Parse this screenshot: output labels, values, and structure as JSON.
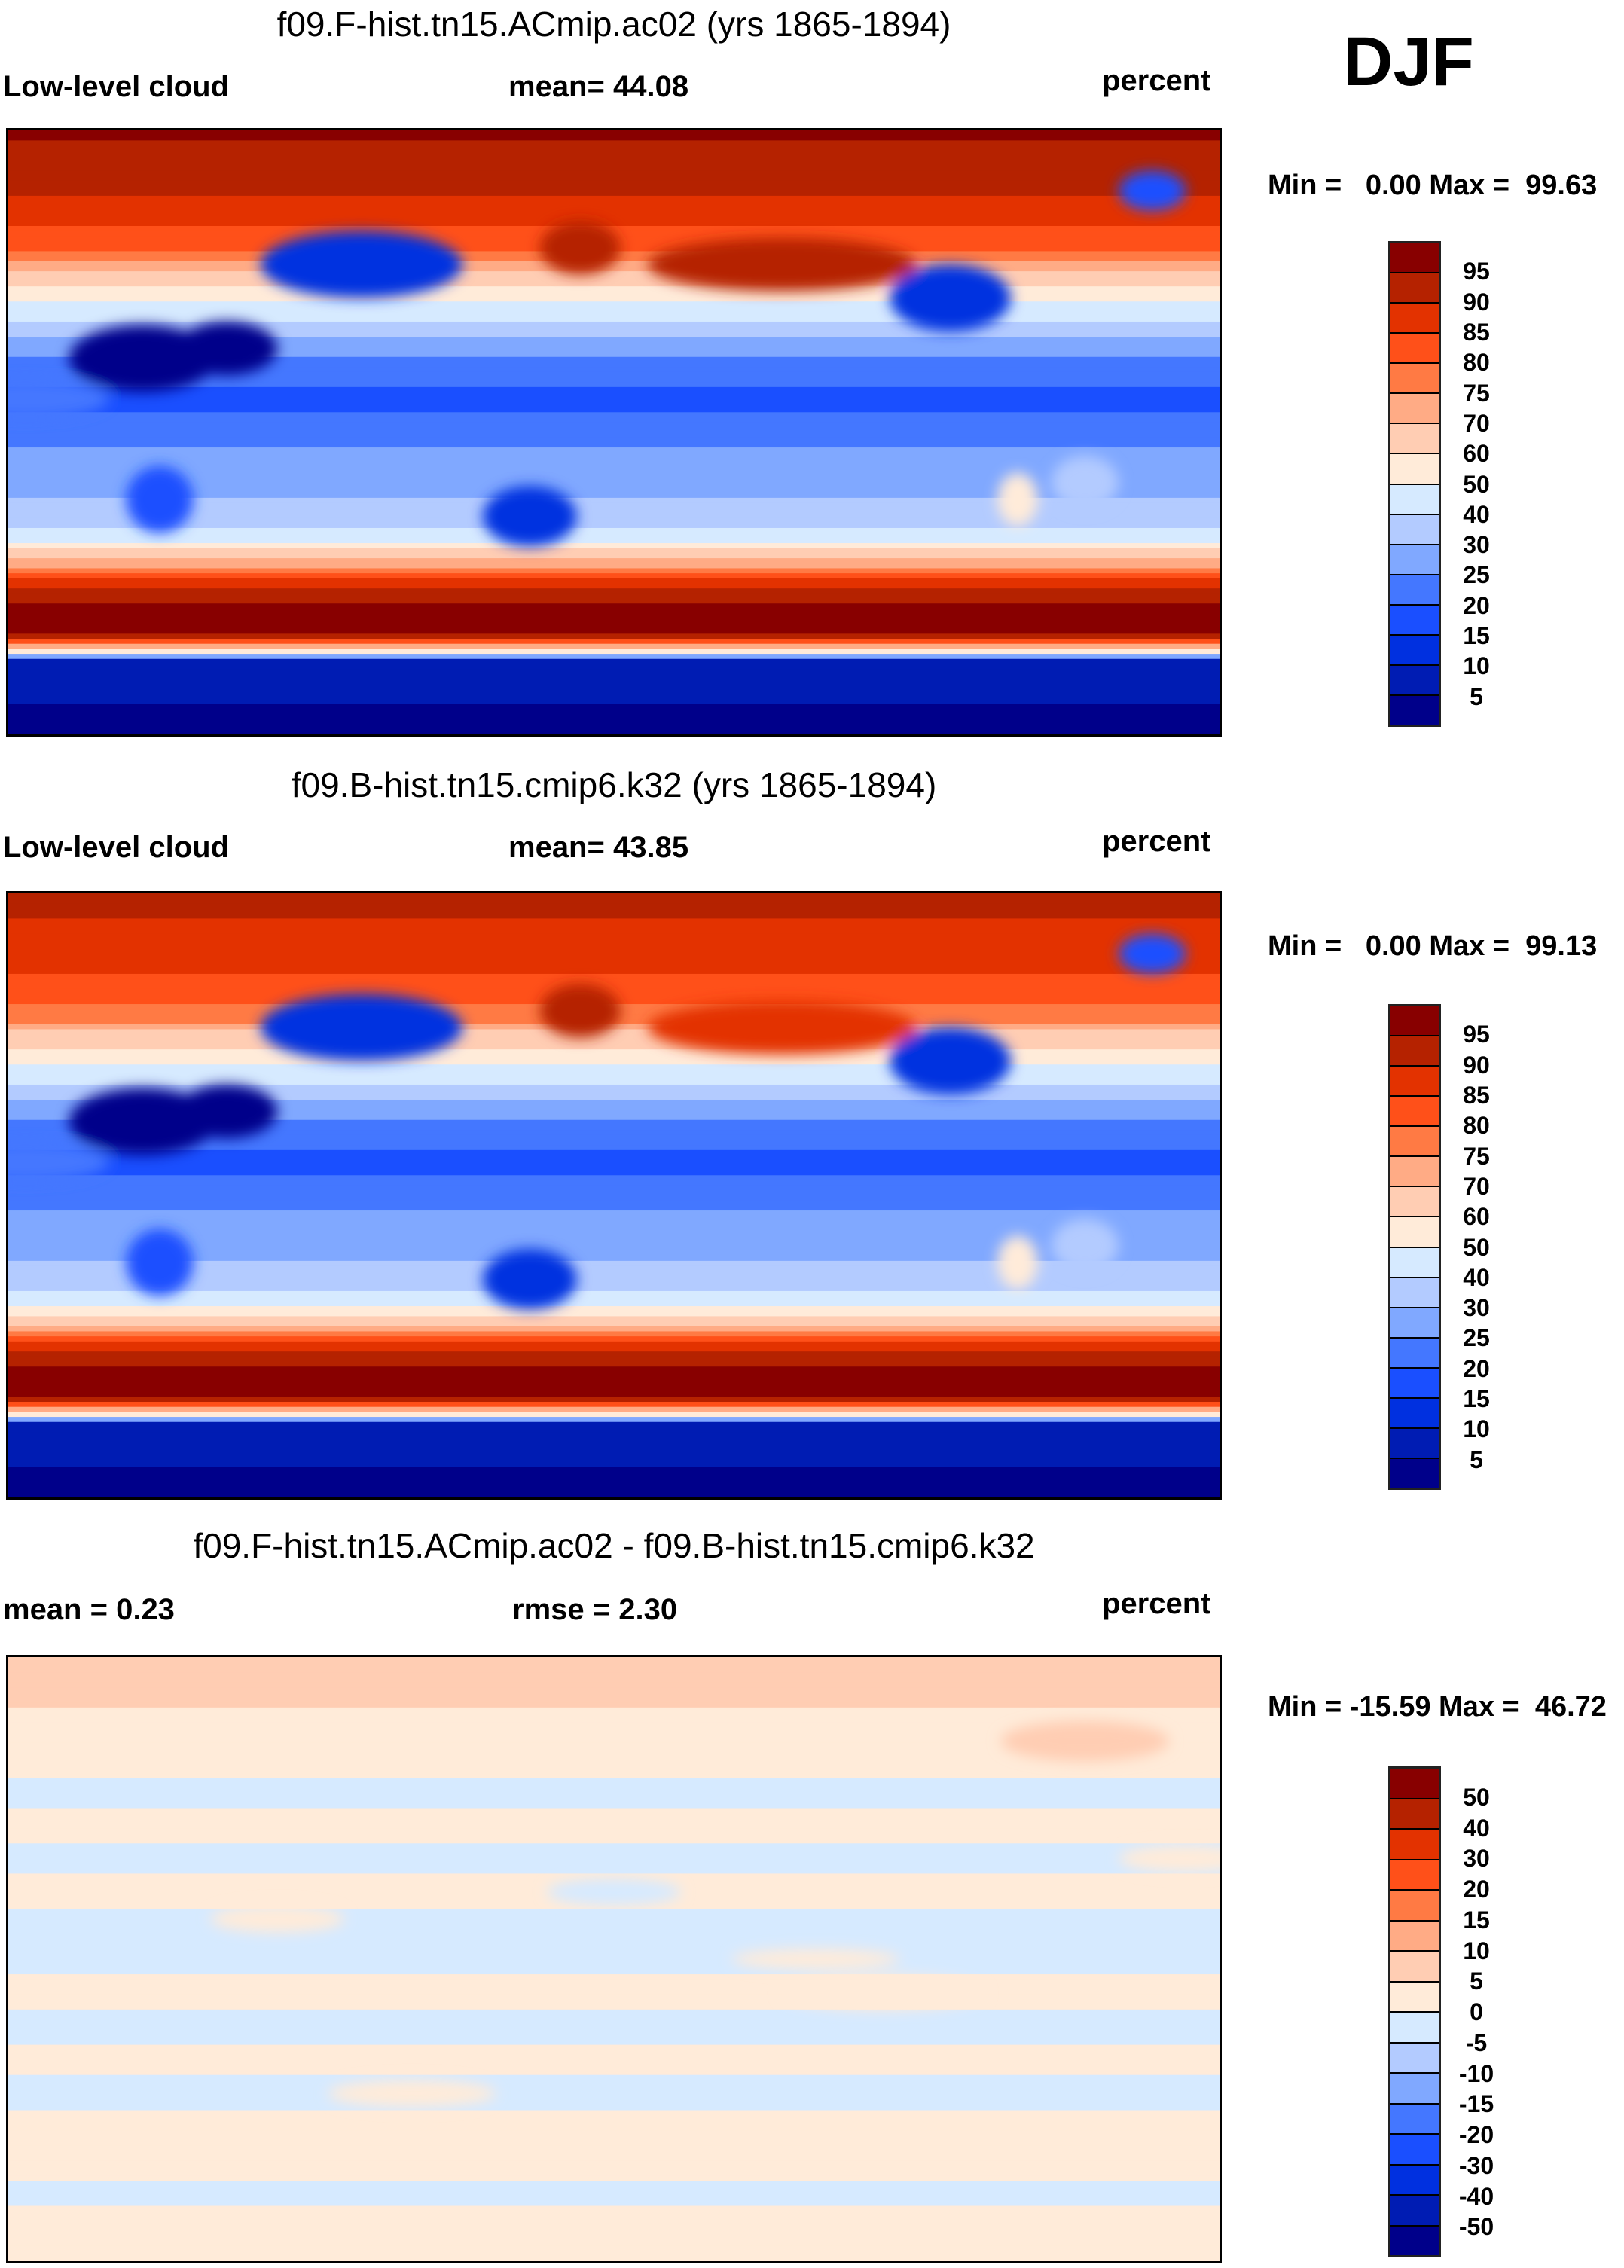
{
  "season": "DJF",
  "chart_data": {
    "type": "heatmap",
    "panels": [
      {
        "title": "f09.F-hist.tn15.ACmip.ac02 (yrs 1865-1894)",
        "left_label": "Low-level cloud",
        "center_label": "mean=  44.08",
        "units": "percent",
        "minmax": "Min =   0.00 Max =  99.63",
        "levels": [
          "95",
          "90",
          "85",
          "80",
          "75",
          "70",
          "60",
          "50",
          "40",
          "30",
          "25",
          "20",
          "15",
          "10",
          "5"
        ],
        "thresholds": [
          5,
          10,
          15,
          20,
          25,
          30,
          40,
          50,
          60,
          70,
          75,
          80,
          85,
          90,
          95
        ],
        "zonal_bands": [
          [
            90,
            96
          ],
          [
            75,
            92
          ],
          [
            62,
            86
          ],
          [
            52,
            78
          ],
          [
            44,
            62
          ],
          [
            36,
            45
          ],
          [
            28,
            30
          ],
          [
            18,
            22
          ],
          [
            8,
            18
          ],
          [
            0,
            24
          ],
          [
            -10,
            26
          ],
          [
            -20,
            30
          ],
          [
            -30,
            42
          ],
          [
            -38,
            70
          ],
          [
            -45,
            88
          ],
          [
            -52,
            97
          ],
          [
            -60,
            97
          ],
          [
            -64,
            70
          ],
          [
            -68,
            8
          ],
          [
            -90,
            3
          ]
        ],
        "features": [
          [
            20,
            22,
            22,
            10,
            4
          ],
          [
            45,
            25,
            15,
            8,
            4
          ],
          [
            -60,
            -15,
            10,
            8,
            35
          ],
          [
            135,
            -25,
            14,
            9,
            12
          ],
          [
            -100,
            40,
            18,
            10,
            14
          ],
          [
            85,
            50,
            30,
            10,
            12
          ],
          [
            -150,
            50,
            40,
            8,
            92
          ],
          [
            150,
            55,
            12,
            8,
            94
          ],
          [
            -40,
            72,
            10,
            6,
            20
          ],
          [
            25,
            -20,
            10,
            10,
            18
          ],
          [
            -15,
            10,
            25,
            6,
            22
          ],
          [
            -80,
            -20,
            6,
            8,
            60
          ]
        ]
      },
      {
        "title": "f09.B-hist.tn15.cmip6.k32 (yrs 1865-1894)",
        "left_label": "Low-level cloud",
        "center_label": "mean=  43.85",
        "units": "percent",
        "minmax": "Min =   0.00 Max =  99.13",
        "levels": [
          "95",
          "90",
          "85",
          "80",
          "75",
          "70",
          "60",
          "50",
          "40",
          "30",
          "25",
          "20",
          "15",
          "10",
          "5"
        ],
        "thresholds": [
          5,
          10,
          15,
          20,
          25,
          30,
          40,
          50,
          60,
          70,
          75,
          80,
          85,
          90,
          95
        ],
        "zonal_bands": [
          [
            90,
            92
          ],
          [
            75,
            88
          ],
          [
            62,
            84
          ],
          [
            52,
            76
          ],
          [
            44,
            60
          ],
          [
            36,
            44
          ],
          [
            28,
            30
          ],
          [
            18,
            22
          ],
          [
            8,
            18
          ],
          [
            0,
            24
          ],
          [
            -10,
            26
          ],
          [
            -20,
            30
          ],
          [
            -30,
            42
          ],
          [
            -38,
            68
          ],
          [
            -45,
            88
          ],
          [
            -52,
            96
          ],
          [
            -60,
            96
          ],
          [
            -64,
            70
          ],
          [
            -68,
            8
          ],
          [
            -90,
            3
          ]
        ],
        "features": [
          [
            20,
            22,
            22,
            10,
            4
          ],
          [
            45,
            25,
            15,
            8,
            4
          ],
          [
            -60,
            -15,
            10,
            8,
            35
          ],
          [
            135,
            -25,
            14,
            9,
            12
          ],
          [
            -100,
            40,
            18,
            10,
            14
          ],
          [
            85,
            50,
            30,
            10,
            12
          ],
          [
            -150,
            50,
            40,
            8,
            90
          ],
          [
            150,
            55,
            12,
            8,
            92
          ],
          [
            -40,
            72,
            10,
            6,
            20
          ],
          [
            25,
            -20,
            10,
            10,
            18
          ],
          [
            -15,
            10,
            25,
            6,
            22
          ],
          [
            -80,
            -20,
            6,
            8,
            60
          ]
        ]
      },
      {
        "title": "f09.F-hist.tn15.ACmip.ac02 - f09.B-hist.tn15.cmip6.k32",
        "left_label": "mean =   0.23",
        "center_label": "rmse =   2.30",
        "units": "percent",
        "minmax": "Min = -15.59 Max =  46.72",
        "levels": [
          "50",
          "40",
          "30",
          "20",
          "15",
          "10",
          "5",
          "0",
          "-5",
          "-10",
          "-15",
          "-20",
          "-30",
          "-40",
          "-50"
        ],
        "thresholds": [
          -50,
          -40,
          -30,
          -20,
          -15,
          -10,
          -5,
          0,
          5,
          10,
          15,
          20,
          30,
          40,
          50
        ],
        "zonal_bands": [
          [
            90,
            7
          ],
          [
            78,
            6
          ],
          [
            68,
            3
          ],
          [
            58,
            1
          ],
          [
            50,
            -1
          ],
          [
            40,
            1
          ],
          [
            30,
            -1
          ],
          [
            20,
            1
          ],
          [
            10,
            -1
          ],
          [
            0,
            -1
          ],
          [
            -10,
            1
          ],
          [
            -20,
            -1
          ],
          [
            -30,
            1
          ],
          [
            -40,
            -1
          ],
          [
            -50,
            1
          ],
          [
            -60,
            2
          ],
          [
            -70,
            -1
          ],
          [
            -80,
            2
          ],
          [
            -90,
            1
          ]
        ],
        "features": [
          [
            60,
            12,
            20,
            4,
            2
          ],
          [
            -120,
            -10,
            30,
            5,
            2
          ],
          [
            100,
            -40,
            25,
            4,
            2
          ],
          [
            -30,
            30,
            20,
            4,
            2
          ],
          [
            160,
            20,
            20,
            4,
            -2
          ],
          [
            -60,
            65,
            25,
            6,
            8
          ],
          [
            -140,
            0,
            25,
            3,
            2
          ]
        ]
      }
    ],
    "colors": [
      "#00008a",
      "#001cb3",
      "#0030e0",
      "#1a4fff",
      "#4477ff",
      "#80a8ff",
      "#b3cbff",
      "#d6eaff",
      "#ffebd9",
      "#ffcdb3",
      "#ffab85",
      "#ff7a44",
      "#ff5019",
      "#e33200",
      "#b52200",
      "#880000"
    ]
  }
}
